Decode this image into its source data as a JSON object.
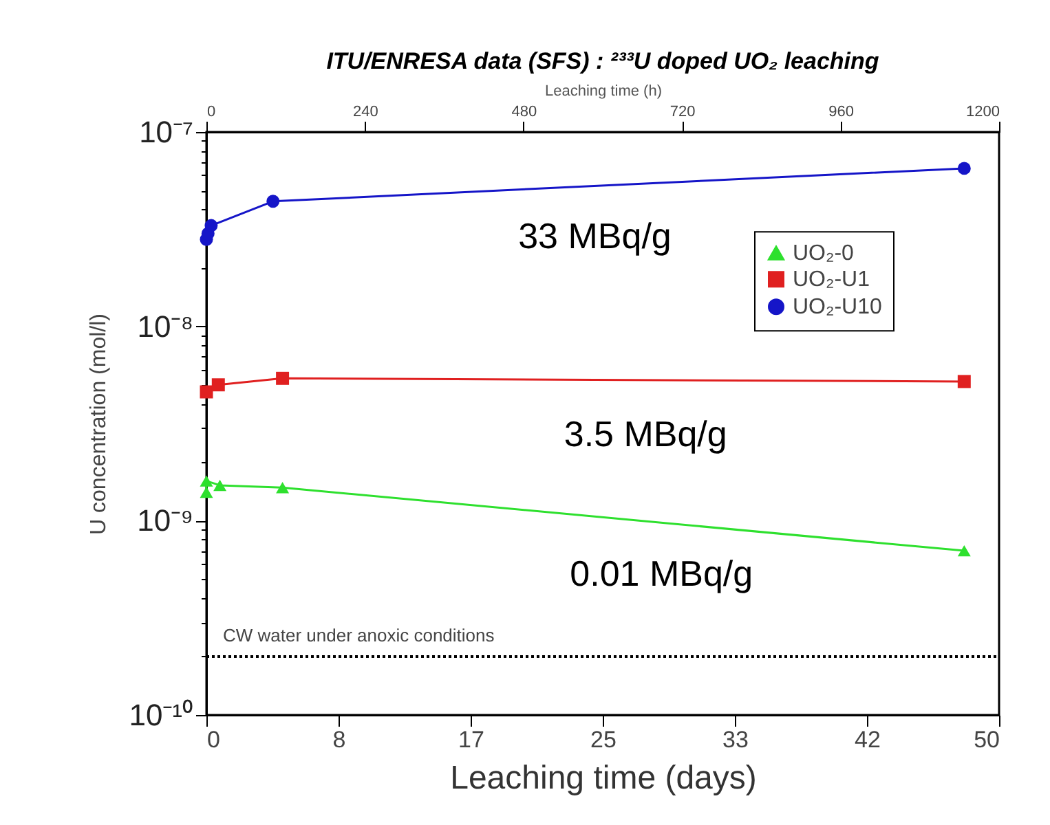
{
  "chart_data": {
    "type": "line",
    "title": "ITU/ENRESA data (SFS) : ²³³U doped UO₂ leaching",
    "xlabel": "Leaching time (days)",
    "x2label": "Leaching time (h)",
    "ylabel": "U concentration (mol/l)",
    "xlim": [
      0,
      50
    ],
    "xticks": [
      0,
      {
        "value": 8.333,
        "label": "8"
      },
      {
        "value": 16.667,
        "label": "17"
      },
      25,
      {
        "value": 33.333,
        "label": "33"
      },
      {
        "value": 41.667,
        "label": "42"
      },
      50
    ],
    "x2lim": [
      0,
      1200
    ],
    "x2ticks": [
      0,
      240,
      480,
      720,
      960,
      1200
    ],
    "ylim": [
      1e-10,
      1e-07
    ],
    "log": "y",
    "yticks": [
      {
        "value": 1e-10,
        "label": "10⁻¹⁰"
      },
      {
        "value": 2e-10,
        "label": null
      },
      {
        "value": 3e-10,
        "label": null
      },
      {
        "value": 4e-10,
        "label": null
      },
      {
        "value": 5e-10,
        "label": null
      },
      {
        "value": 6e-10,
        "label": null
      },
      {
        "value": 7e-10,
        "label": null
      },
      {
        "value": 8e-10,
        "label": null
      },
      {
        "value": 9e-10,
        "label": null
      },
      {
        "value": 1e-09,
        "label": "10⁻⁹"
      },
      {
        "value": 2e-09,
        "label": null
      },
      {
        "value": 3e-09,
        "label": null
      },
      {
        "value": 4e-09,
        "label": null
      },
      {
        "value": 5e-09,
        "label": null
      },
      {
        "value": 6e-09,
        "label": null
      },
      {
        "value": 7e-09,
        "label": null
      },
      {
        "value": 8e-09,
        "label": null
      },
      {
        "value": 9e-09,
        "label": null
      },
      {
        "value": 1e-08,
        "label": "10⁻⁸"
      },
      {
        "value": 2e-08,
        "label": null
      },
      {
        "value": 3e-08,
        "label": null
      },
      {
        "value": 4e-08,
        "label": null
      },
      {
        "value": 5e-08,
        "label": null
      },
      {
        "value": 6e-08,
        "label": null
      },
      {
        "value": 7e-08,
        "label": null
      },
      {
        "value": 8e-08,
        "label": null
      },
      {
        "value": 9e-08,
        "label": null
      },
      {
        "value": 1e-07,
        "label": "10⁻⁷"
      }
    ],
    "legend": "top right",
    "series": [
      {
        "name": "UO₂-0",
        "color": "#2ee02e",
        "marker": "triangle",
        "x": [
          0,
          0,
          0.85,
          4.8,
          47.8
        ],
        "values": [
          1.4e-09,
          1.6e-09,
          1.52e-09,
          1.48e-09,
          7e-10
        ]
      },
      {
        "name": "UO₂-U1",
        "color": "#e02020",
        "marker": "square",
        "x": [
          0,
          0.75,
          4.8,
          47.8
        ],
        "values": [
          4.6e-09,
          5e-09,
          5.4e-09,
          5.2e-09
        ]
      },
      {
        "name": "UO₂-U10",
        "color": "#1515c8",
        "marker": "circle",
        "x": [
          0,
          0.1,
          0.3,
          4.2,
          47.8
        ],
        "values": [
          2.8e-08,
          3e-08,
          3.3e-08,
          4.4e-08,
          6.5e-08
        ]
      }
    ],
    "ref_lines": [
      {
        "axis": "y",
        "value": 2e-10,
        "label": "CW water under anoxic conditions",
        "line_style": "dotted",
        "color": "#000000"
      }
    ],
    "annotations": [
      "33 MBq/g",
      "3.5 MBq/g",
      "0.01 MBq/g"
    ]
  }
}
